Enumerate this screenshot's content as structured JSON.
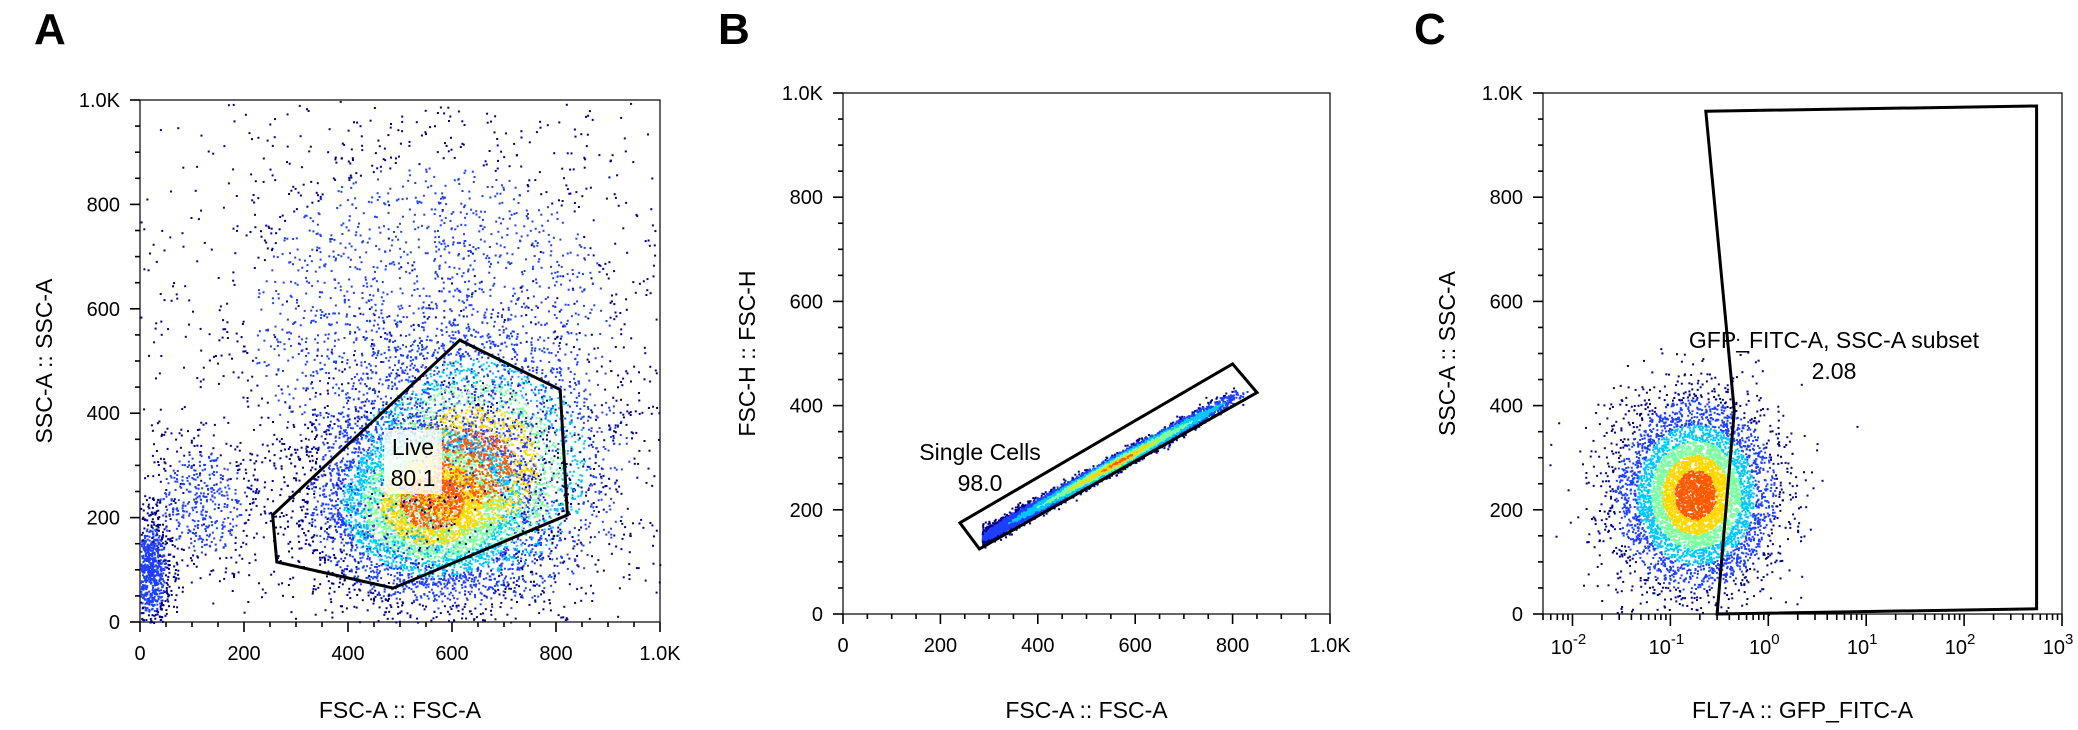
{
  "chart_data": [
    {
      "type": "scatter",
      "panel": "A",
      "xlabel": "FSC-A :: FSC-A",
      "ylabel": "SSC-A :: SSC-A",
      "xlim": [
        0,
        1000
      ],
      "ylim": [
        0,
        1000
      ],
      "x_ticks": [
        "0",
        "200",
        "400",
        "600",
        "800",
        "1.0K"
      ],
      "y_ticks": [
        "0",
        "200",
        "400",
        "600",
        "800",
        "1.0K"
      ],
      "gate": {
        "name": "Live",
        "value": "80.1",
        "vertices": [
          [
            615,
            540
          ],
          [
            808,
            445
          ],
          [
            822,
            205
          ],
          [
            487,
            65
          ],
          [
            263,
            115
          ],
          [
            255,
            205
          ]
        ]
      },
      "populations": [
        {
          "cx": 560,
          "cy": 230,
          "sx": 110,
          "sy": 90,
          "n": 6000
        },
        {
          "cx": 640,
          "cy": 300,
          "sx": 140,
          "sy": 130,
          "n": 3500
        },
        {
          "cx": 20,
          "cy": 100,
          "sx": 20,
          "sy": 60,
          "n": 900
        },
        {
          "cx": 560,
          "cy": 560,
          "sx": 250,
          "sy": 230,
          "n": 2600
        },
        {
          "cx": 120,
          "cy": 230,
          "sx": 60,
          "sy": 70,
          "n": 500
        }
      ],
      "color_scale": [
        "#00008b",
        "#1f3fff",
        "#00c8ff",
        "#7dffa0",
        "#ffd800",
        "#ff5a00"
      ]
    },
    {
      "type": "scatter",
      "panel": "B",
      "xlabel": "FSC-A :: FSC-A",
      "ylabel": "FSC-H :: FSC-H",
      "xlim": [
        0,
        1000
      ],
      "ylim": [
        0,
        1000
      ],
      "x_ticks": [
        "0",
        "200",
        "400",
        "600",
        "800",
        "1.0K"
      ],
      "y_ticks": [
        "0",
        "200",
        "400",
        "600",
        "800",
        "1.0K"
      ],
      "gate": {
        "name": "Single Cells",
        "value": "98.0",
        "vertices": [
          [
            240,
            175
          ],
          [
            800,
            480
          ],
          [
            850,
            425
          ],
          [
            280,
            125
          ]
        ]
      },
      "populations": [
        {
          "x0": 285,
          "x1": 830,
          "slope": 0.52,
          "intercept": 0,
          "width": 8,
          "n": 7000
        }
      ],
      "color_scale": [
        "#00008b",
        "#1f3fff",
        "#00c8ff",
        "#7dffa0",
        "#ffd800",
        "#ff5a00"
      ]
    },
    {
      "type": "scatter",
      "panel": "C",
      "xlabel": "FL7-A :: GFP_FITC-A",
      "ylabel": "SSC-A :: SSC-A",
      "xscale": "log",
      "xlim": [
        0.005,
        1000
      ],
      "ylim": [
        0,
        1000
      ],
      "x_ticks": [
        "10-2",
        "10-1",
        "100",
        "101",
        "102",
        "103"
      ],
      "y_ticks": [
        "0",
        "200",
        "400",
        "600",
        "800",
        "1.0K"
      ],
      "gate": {
        "name": "GFP_FITC-A, SSC-A subset",
        "value": "2.08",
        "vertices": [
          [
            0.23,
            965
          ],
          [
            550,
            975
          ],
          [
            550,
            10
          ],
          [
            0.3,
            0
          ],
          [
            0.45,
            390
          ]
        ]
      },
      "populations": [
        {
          "clog": -0.75,
          "cy": 230,
          "slog": 0.38,
          "sy": 85,
          "n": 6500
        }
      ],
      "color_scale": [
        "#00008b",
        "#1f3fff",
        "#00c8ff",
        "#7dffa0",
        "#ffd800",
        "#ff5a00"
      ]
    }
  ],
  "panels": {
    "A": {
      "letter": "A"
    },
    "B": {
      "letter": "B"
    },
    "C": {
      "letter": "C"
    }
  }
}
